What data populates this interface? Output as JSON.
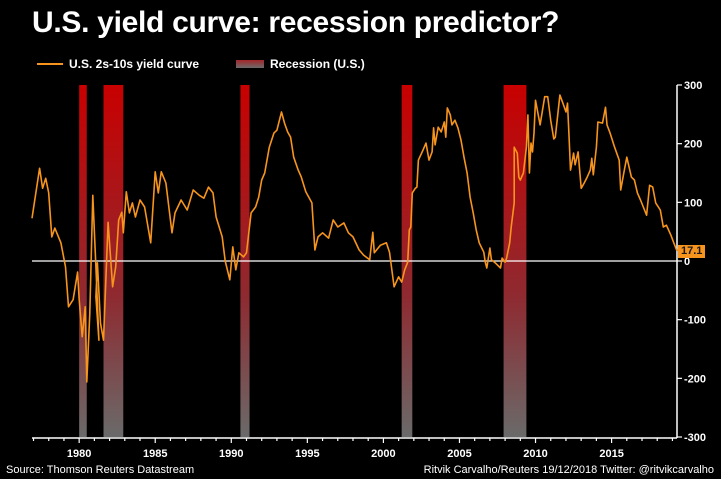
{
  "chart_data": {
    "type": "line",
    "title": "U.S. yield curve: recession predictor?",
    "xlabel": "",
    "ylabel": "",
    "xlim": [
      1976.9,
      2019.3
    ],
    "ylim": [
      -300,
      300
    ],
    "xticks": [
      1980,
      1985,
      1990,
      1995,
      2000,
      2005,
      2010,
      2015
    ],
    "xtick_labels": [
      "1980",
      "1985",
      "1990",
      "1995",
      "2000",
      "2005",
      "2010",
      "2015"
    ],
    "yticks": [
      300,
      200,
      100,
      0,
      -100,
      -200,
      -300
    ],
    "ytick_labels": [
      "300",
      "200",
      "100",
      "0",
      "-100",
      "-200",
      "-300"
    ],
    "y_axis_side": "right",
    "grid": false,
    "zero_line": true,
    "legend": {
      "placement": "top-left",
      "entries": [
        {
          "label": "U.S. 2s-10s yield curve",
          "type": "line",
          "color": "#f7941d"
        },
        {
          "label": "Recession (U.S.)",
          "type": "band",
          "color": "#b01010"
        }
      ]
    },
    "series": [
      {
        "name": "U.S. 2s-10s yield curve",
        "color": "#f7941d",
        "points": [
          [
            1976.9,
            73
          ],
          [
            1977.4,
            158
          ],
          [
            1977.6,
            124
          ],
          [
            1977.8,
            141
          ],
          [
            1978.0,
            116
          ],
          [
            1978.2,
            41
          ],
          [
            1978.4,
            56
          ],
          [
            1978.8,
            31
          ],
          [
            1979.1,
            -10
          ],
          [
            1979.3,
            -78
          ],
          [
            1979.6,
            -66
          ],
          [
            1979.9,
            -19
          ],
          [
            1980.0,
            -66
          ],
          [
            1980.2,
            -129
          ],
          [
            1980.4,
            -78
          ],
          [
            1980.5,
            -206
          ],
          [
            1980.7,
            -89
          ],
          [
            1980.9,
            112
          ],
          [
            1981.1,
            -10
          ],
          [
            1981.3,
            -135
          ],
          [
            1981.1,
            -61
          ],
          [
            1981.2,
            -3
          ],
          [
            1981.4,
            -106
          ],
          [
            1981.6,
            -135
          ],
          [
            1981.9,
            66
          ],
          [
            1982.2,
            -44
          ],
          [
            1982.4,
            -10
          ],
          [
            1982.6,
            70
          ],
          [
            1982.8,
            83
          ],
          [
            1982.9,
            48
          ],
          [
            1983.1,
            118
          ],
          [
            1983.3,
            82
          ],
          [
            1983.5,
            99
          ],
          [
            1983.7,
            75
          ],
          [
            1984.0,
            104
          ],
          [
            1984.3,
            92
          ],
          [
            1984.7,
            31
          ],
          [
            1985.0,
            152
          ],
          [
            1985.2,
            116
          ],
          [
            1985.4,
            152
          ],
          [
            1985.7,
            133
          ],
          [
            1986.1,
            48
          ],
          [
            1986.3,
            82
          ],
          [
            1986.7,
            104
          ],
          [
            1987.1,
            87
          ],
          [
            1987.5,
            121
          ],
          [
            1987.9,
            112
          ],
          [
            1988.2,
            107
          ],
          [
            1988.5,
            126
          ],
          [
            1988.8,
            116
          ],
          [
            1989.0,
            75
          ],
          [
            1989.4,
            41
          ],
          [
            1989.6,
            0
          ],
          [
            1989.9,
            -32
          ],
          [
            1990.1,
            24
          ],
          [
            1990.3,
            -15
          ],
          [
            1990.5,
            14
          ],
          [
            1990.8,
            7
          ],
          [
            1991.0,
            14
          ],
          [
            1991.3,
            82
          ],
          [
            1991.6,
            92
          ],
          [
            1991.8,
            109
          ],
          [
            1992.0,
            138
          ],
          [
            1992.2,
            150
          ],
          [
            1992.5,
            194
          ],
          [
            1992.8,
            218
          ],
          [
            1993.0,
            223
          ],
          [
            1993.3,
            254
          ],
          [
            1993.5,
            235
          ],
          [
            1993.7,
            220
          ],
          [
            1993.9,
            211
          ],
          [
            1994.1,
            177
          ],
          [
            1994.4,
            155
          ],
          [
            1994.6,
            143
          ],
          [
            1994.9,
            118
          ],
          [
            1995.3,
            99
          ],
          [
            1995.5,
            19
          ],
          [
            1995.7,
            41
          ],
          [
            1996.0,
            48
          ],
          [
            1996.4,
            39
          ],
          [
            1996.7,
            70
          ],
          [
            1997.0,
            58
          ],
          [
            1997.4,
            65
          ],
          [
            1997.7,
            48
          ],
          [
            1998.0,
            41
          ],
          [
            1998.4,
            19
          ],
          [
            1998.7,
            10
          ],
          [
            1999.1,
            2
          ],
          [
            1999.3,
            49
          ],
          [
            1999.4,
            14
          ],
          [
            1999.8,
            27
          ],
          [
            2000.2,
            31
          ],
          [
            2000.4,
            15
          ],
          [
            2000.7,
            -44
          ],
          [
            2001.0,
            -27
          ],
          [
            2001.2,
            -36
          ],
          [
            2001.4,
            -15
          ],
          [
            2001.6,
            -2
          ],
          [
            2001.7,
            53
          ],
          [
            2001.8,
            58
          ],
          [
            2001.9,
            116
          ],
          [
            2002.1,
            124
          ],
          [
            2002.2,
            126
          ],
          [
            2002.3,
            172
          ],
          [
            2002.6,
            189
          ],
          [
            2002.8,
            201
          ],
          [
            2003.0,
            172
          ],
          [
            2003.2,
            186
          ],
          [
            2003.3,
            227
          ],
          [
            2003.4,
            198
          ],
          [
            2003.6,
            228
          ],
          [
            2003.8,
            220
          ],
          [
            2004.0,
            237
          ],
          [
            2004.1,
            211
          ],
          [
            2004.2,
            261
          ],
          [
            2004.4,
            249
          ],
          [
            2004.5,
            232
          ],
          [
            2004.7,
            240
          ],
          [
            2004.9,
            227
          ],
          [
            2005.1,
            206
          ],
          [
            2005.3,
            177
          ],
          [
            2005.5,
            150
          ],
          [
            2005.7,
            109
          ],
          [
            2005.9,
            82
          ],
          [
            2006.1,
            53
          ],
          [
            2006.3,
            31
          ],
          [
            2006.6,
            15
          ],
          [
            2006.7,
            -2
          ],
          [
            2006.8,
            -12
          ],
          [
            2007.0,
            22
          ],
          [
            2007.1,
            2
          ],
          [
            2007.3,
            -2
          ],
          [
            2007.5,
            -7
          ],
          [
            2007.7,
            -12
          ],
          [
            2007.8,
            5
          ],
          [
            2008.0,
            -2
          ],
          [
            2008.1,
            5
          ],
          [
            2008.3,
            31
          ],
          [
            2008.4,
            58
          ],
          [
            2008.6,
            99
          ],
          [
            2008.6,
            194
          ],
          [
            2008.8,
            184
          ],
          [
            2008.9,
            143
          ],
          [
            2009.0,
            138
          ],
          [
            2009.2,
            150
          ],
          [
            2009.4,
            194
          ],
          [
            2009.5,
            249
          ],
          [
            2009.6,
            150
          ],
          [
            2009.7,
            201
          ],
          [
            2009.8,
            186
          ],
          [
            2009.9,
            218
          ],
          [
            2010.0,
            274
          ],
          [
            2010.3,
            232
          ],
          [
            2010.6,
            280
          ],
          [
            2010.8,
            280
          ],
          [
            2011.0,
            240
          ],
          [
            2011.2,
            208
          ],
          [
            2011.3,
            211
          ],
          [
            2011.6,
            283
          ],
          [
            2011.8,
            269
          ],
          [
            2012.0,
            254
          ],
          [
            2012.1,
            269
          ],
          [
            2012.2,
            214
          ],
          [
            2012.3,
            155
          ],
          [
            2012.5,
            184
          ],
          [
            2012.6,
            164
          ],
          [
            2012.8,
            186
          ],
          [
            2013.0,
            124
          ],
          [
            2013.2,
            133
          ],
          [
            2013.4,
            143
          ],
          [
            2013.6,
            155
          ],
          [
            2013.7,
            175
          ],
          [
            2013.8,
            147
          ],
          [
            2014.0,
            194
          ],
          [
            2014.1,
            237
          ],
          [
            2014.4,
            235
          ],
          [
            2014.6,
            262
          ],
          [
            2014.7,
            232
          ],
          [
            2014.9,
            218
          ],
          [
            2015.2,
            194
          ],
          [
            2015.5,
            172
          ],
          [
            2015.6,
            121
          ],
          [
            2015.8,
            150
          ],
          [
            2016.0,
            177
          ],
          [
            2016.3,
            143
          ],
          [
            2016.5,
            138
          ],
          [
            2016.7,
            116
          ],
          [
            2016.9,
            104
          ],
          [
            2017.3,
            78
          ],
          [
            2017.5,
            129
          ],
          [
            2017.7,
            126
          ],
          [
            2017.9,
            99
          ],
          [
            2018.2,
            87
          ],
          [
            2018.4,
            58
          ],
          [
            2018.6,
            61
          ],
          [
            2018.9,
            44
          ],
          [
            2019.1,
            30
          ],
          [
            2019.3,
            17.1
          ]
        ]
      }
    ],
    "recessions": [
      {
        "start": 1980.0,
        "end": 1980.5
      },
      {
        "start": 1981.6,
        "end": 1982.9
      },
      {
        "start": 1990.6,
        "end": 1991.2
      },
      {
        "start": 2001.2,
        "end": 2001.9
      },
      {
        "start": 2007.9,
        "end": 2009.4
      }
    ],
    "last_value_label": "17.1",
    "last_value": 17.1
  },
  "footer": {
    "source": "Source: Thomson Reuters Datastream",
    "credit": "Ritvik Carvalho/Reuters 19/12/2018 Twitter: @ritvikcarvalho"
  }
}
